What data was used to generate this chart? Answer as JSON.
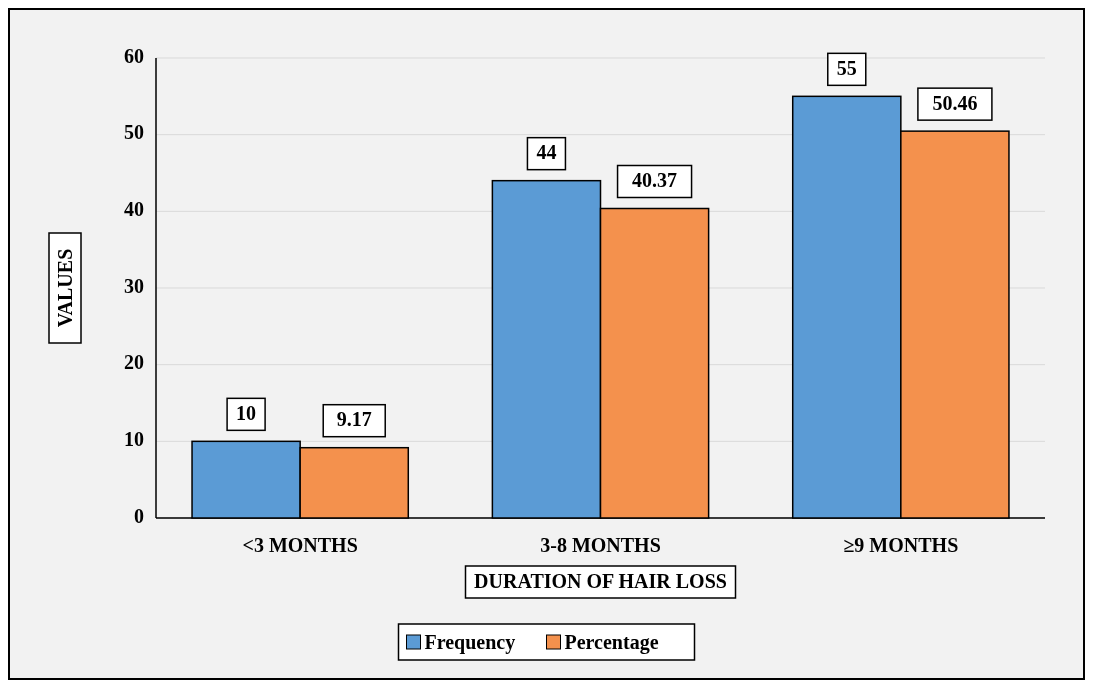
{
  "chart_data": {
    "type": "bar",
    "xlabel": "DURATION OF HAIR LOSS",
    "ylabel": "VALUES",
    "categories": [
      "<3 MONTHS",
      "3-8 MONTHS",
      "≥9 MONTHS"
    ],
    "series": [
      {
        "name": "Frequency",
        "color": "#5b9bd5",
        "values": [
          10,
          44,
          55
        ]
      },
      {
        "name": "Percentage",
        "color": "#f4914d",
        "values": [
          9.17,
          40.37,
          50.46
        ]
      }
    ],
    "ylim": [
      0,
      60
    ],
    "yticks": [
      0,
      10,
      20,
      30,
      40,
      50,
      60
    ],
    "grid": "y",
    "legend": "bottom",
    "data_labels": true
  }
}
